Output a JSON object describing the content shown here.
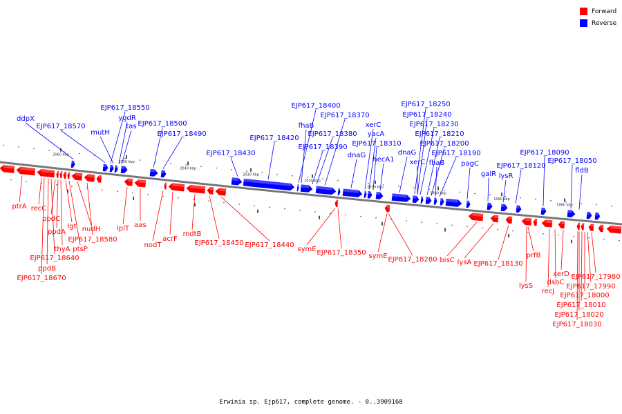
{
  "legend": {
    "forward_label": "Forward",
    "reverse_label": "Reverse",
    "forward_color": "#ff0000",
    "reverse_color": "#0000ff"
  },
  "caption": "Erwinia sp. Ejp617, complete genome. - 0..3909168",
  "ticks": [
    "2060 kbp",
    "2050 kbp",
    "2040 kbp",
    "2030 kbp",
    "2020 kbp",
    "2010 kbp",
    "2000 kbp",
    "1990 kbp",
    "1980 kbp"
  ],
  "genes_forward": [
    "ptrA",
    "recC",
    "ppdC",
    "ppdA",
    "lgt",
    "thyA",
    "ptsP",
    "nudH",
    "EJP617_18580",
    "EJP617_18640",
    "ppdB",
    "EJP617_18670",
    "lplT",
    "aas",
    "nodT",
    "acrF",
    "mdtB",
    "EJP617_18450",
    "EJP617_18440",
    "symE",
    "EJP617_18350",
    "symE",
    "EJP617_18280",
    "bisC",
    "lysA",
    "EJP617_18130",
    "prfB",
    "lysS",
    "recJ",
    "dsbC",
    "xerD",
    "EJP617_17980",
    "EJP617_17990",
    "EJP617_18000",
    "EJP617_18010",
    "EJP617_18020",
    "EJP617_18030"
  ],
  "genes_reverse": [
    "ddpX",
    "EJP617_18570",
    "EJP617_18550",
    "mutH",
    "ygdR",
    "tas",
    "EJP617_18500",
    "EJP617_18490",
    "EJP617_18430",
    "EJP617_18420",
    "EJP617_18400",
    "fhaB",
    "EJP617_18370",
    "EJP617_18380",
    "EJP617_18390",
    "dnaG",
    "xerC",
    "yacA",
    "EJP617_18310",
    "hecA1",
    "dnaG",
    "EJP617_18250",
    "EJP617_18240",
    "EJP617_18230",
    "xerC",
    "EJP617_18210",
    "EJP617_18200",
    "fhaB",
    "EJP617_18190",
    "pagC",
    "galR",
    "lysR",
    "EJP617_18120",
    "EJP617_18090",
    "EJP617_18050",
    "fldB"
  ]
}
